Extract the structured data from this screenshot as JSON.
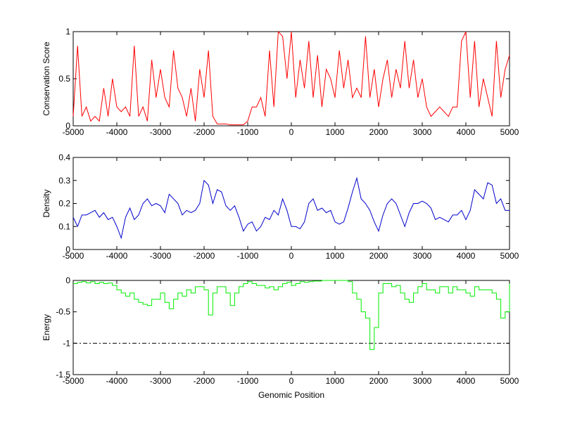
{
  "chart_data": [
    {
      "type": "line",
      "ylabel": "Conservation Score",
      "color": "#ff0000",
      "x": [
        -5000,
        -4900,
        -4800,
        -4700,
        -4600,
        -4500,
        -4400,
        -4300,
        -4200,
        -4100,
        -4000,
        -3900,
        -3800,
        -3700,
        -3600,
        -3500,
        -3400,
        -3300,
        -3200,
        -3100,
        -3000,
        -2900,
        -2800,
        -2700,
        -2600,
        -2500,
        -2400,
        -2300,
        -2200,
        -2100,
        -2000,
        -1900,
        -1800,
        -1700,
        -1600,
        -1500,
        -1400,
        -1300,
        -1200,
        -1100,
        -1000,
        -900,
        -800,
        -700,
        -600,
        -500,
        -400,
        -300,
        -200,
        -100,
        0,
        100,
        200,
        300,
        400,
        500,
        600,
        700,
        800,
        900,
        1000,
        1100,
        1200,
        1300,
        1400,
        1500,
        1600,
        1700,
        1800,
        1900,
        2000,
        2100,
        2200,
        2300,
        2400,
        2500,
        2600,
        2700,
        2800,
        2900,
        3000,
        3100,
        3200,
        3300,
        3400,
        3500,
        3600,
        3700,
        3800,
        3900,
        4000,
        4100,
        4200,
        4300,
        4400,
        4500,
        4600,
        4700,
        4800,
        4900,
        5000
      ],
      "values": [
        0.1,
        0.85,
        0.1,
        0.2,
        0.05,
        0.1,
        0.05,
        0.4,
        0.1,
        0.5,
        0.2,
        0.15,
        0.2,
        0.1,
        0.85,
        0.1,
        0.2,
        0.05,
        0.7,
        0.3,
        0.6,
        0.3,
        0.2,
        0.8,
        0.4,
        0.3,
        0.1,
        0.4,
        0.05,
        0.6,
        0.3,
        0.8,
        0.1,
        0.02,
        0.02,
        0.02,
        0.01,
        0.01,
        0.01,
        0.01,
        0.05,
        0.2,
        0.2,
        0.3,
        0.1,
        0.8,
        0.2,
        1,
        0.95,
        0.5,
        1,
        0.3,
        0.7,
        0.4,
        0.9,
        0.3,
        0.75,
        0.2,
        0.6,
        0.5,
        0.3,
        0.8,
        0.4,
        0.7,
        0.3,
        0.4,
        0.3,
        0.95,
        0.3,
        0.6,
        0.2,
        0.5,
        0.7,
        0.3,
        0.6,
        0.4,
        0.9,
        0.4,
        0.7,
        0.3,
        0.5,
        0.2,
        0.1,
        0.15,
        0.2,
        0.15,
        0.1,
        0.2,
        0.2,
        0.9,
        1,
        0.3,
        0.9,
        0.2,
        0.5,
        0.3,
        0.1,
        0.9,
        0.3,
        0.6,
        0.75
      ],
      "xlim": [
        -5000,
        5000
      ],
      "xticks": [
        -5000,
        -4000,
        -3000,
        -2000,
        -1000,
        0,
        1000,
        2000,
        3000,
        4000,
        5000
      ],
      "ylim": [
        0,
        1
      ],
      "yticks": [
        0,
        0.5,
        1
      ]
    },
    {
      "type": "line",
      "ylabel": "Density",
      "color": "#0000cc",
      "x": [
        -5000,
        -4900,
        -4800,
        -4700,
        -4600,
        -4500,
        -4400,
        -4300,
        -4200,
        -4100,
        -4000,
        -3900,
        -3800,
        -3700,
        -3600,
        -3500,
        -3400,
        -3300,
        -3200,
        -3100,
        -3000,
        -2900,
        -2800,
        -2700,
        -2600,
        -2500,
        -2400,
        -2300,
        -2200,
        -2100,
        -2000,
        -1900,
        -1800,
        -1700,
        -1600,
        -1500,
        -1400,
        -1300,
        -1200,
        -1100,
        -1000,
        -900,
        -800,
        -700,
        -600,
        -500,
        -400,
        -300,
        -200,
        -100,
        0,
        100,
        200,
        300,
        400,
        500,
        600,
        700,
        800,
        900,
        1000,
        1100,
        1200,
        1300,
        1400,
        1500,
        1600,
        1700,
        1800,
        1900,
        2000,
        2100,
        2200,
        2300,
        2400,
        2500,
        2600,
        2700,
        2800,
        2900,
        3000,
        3100,
        3200,
        3300,
        3400,
        3500,
        3600,
        3700,
        3800,
        3900,
        4000,
        4100,
        4200,
        4300,
        4400,
        4500,
        4600,
        4700,
        4800,
        4900,
        5000
      ],
      "values": [
        0.14,
        0.1,
        0.15,
        0.15,
        0.16,
        0.17,
        0.14,
        0.16,
        0.13,
        0.14,
        0.1,
        0.05,
        0.14,
        0.18,
        0.13,
        0.15,
        0.2,
        0.22,
        0.19,
        0.2,
        0.19,
        0.16,
        0.24,
        0.22,
        0.2,
        0.15,
        0.17,
        0.16,
        0.17,
        0.2,
        0.3,
        0.28,
        0.2,
        0.26,
        0.25,
        0.19,
        0.17,
        0.19,
        0.14,
        0.08,
        0.11,
        0.12,
        0.08,
        0.1,
        0.14,
        0.13,
        0.17,
        0.15,
        0.22,
        0.17,
        0.1,
        0.1,
        0.09,
        0.12,
        0.2,
        0.22,
        0.17,
        0.18,
        0.16,
        0.17,
        0.12,
        0.11,
        0.12,
        0.18,
        0.25,
        0.31,
        0.22,
        0.2,
        0.17,
        0.12,
        0.08,
        0.15,
        0.2,
        0.22,
        0.2,
        0.15,
        0.1,
        0.16,
        0.2,
        0.2,
        0.21,
        0.2,
        0.18,
        0.13,
        0.14,
        0.13,
        0.12,
        0.15,
        0.15,
        0.17,
        0.13,
        0.17,
        0.26,
        0.24,
        0.22,
        0.29,
        0.28,
        0.2,
        0.22,
        0.17,
        0.17
      ],
      "xlim": [
        -5000,
        5000
      ],
      "xticks": [
        -5000,
        -4000,
        -3000,
        -2000,
        -1000,
        0,
        1000,
        2000,
        3000,
        4000,
        5000
      ],
      "ylim": [
        0,
        0.4
      ],
      "yticks": [
        0,
        0.1,
        0.2,
        0.3,
        0.4
      ]
    },
    {
      "type": "step",
      "ylabel": "Energy",
      "xlabel": "Genomic Position",
      "color": "#00ee00",
      "x": [
        -5000,
        -4900,
        -4800,
        -4700,
        -4600,
        -4500,
        -4400,
        -4300,
        -4200,
        -4100,
        -4000,
        -3900,
        -3800,
        -3700,
        -3600,
        -3500,
        -3400,
        -3300,
        -3200,
        -3100,
        -3000,
        -2900,
        -2800,
        -2700,
        -2600,
        -2500,
        -2400,
        -2300,
        -2200,
        -2100,
        -2000,
        -1900,
        -1800,
        -1700,
        -1600,
        -1500,
        -1400,
        -1300,
        -1200,
        -1100,
        -1000,
        -900,
        -800,
        -700,
        -600,
        -500,
        -400,
        -300,
        -200,
        -100,
        0,
        100,
        200,
        300,
        400,
        500,
        600,
        700,
        800,
        900,
        1000,
        1100,
        1200,
        1300,
        1400,
        1500,
        1600,
        1700,
        1800,
        1900,
        2000,
        2100,
        2200,
        2300,
        2400,
        2500,
        2600,
        2700,
        2800,
        2900,
        3000,
        3100,
        3200,
        3300,
        3400,
        3500,
        3600,
        3700,
        3800,
        3900,
        4000,
        4100,
        4200,
        4300,
        4400,
        4500,
        4600,
        4700,
        4800,
        4900,
        5000
      ],
      "values": [
        -0.05,
        -0.03,
        -0.02,
        -0.04,
        -0.02,
        -0.05,
        -0.03,
        -0.05,
        -0.04,
        -0.08,
        -0.15,
        -0.2,
        -0.25,
        -0.2,
        -0.3,
        -0.35,
        -0.38,
        -0.4,
        -0.3,
        -0.3,
        -0.2,
        -0.35,
        -0.45,
        -0.3,
        -0.2,
        -0.25,
        -0.15,
        -0.2,
        -0.1,
        -0.1,
        -0.15,
        -0.55,
        -0.2,
        -0.1,
        -0.1,
        -0.2,
        -0.4,
        -0.2,
        -0.1,
        -0.05,
        -0.02,
        -0.05,
        -0.08,
        -0.08,
        -0.12,
        -0.1,
        -0.15,
        -0.1,
        -0.05,
        -0.03,
        -0.08,
        -0.05,
        -0.02,
        -0.03,
        -0.02,
        -0.01,
        -0.01,
        0,
        0,
        0,
        0,
        0,
        0,
        -0.02,
        -0.2,
        -0.3,
        -0.5,
        -0.6,
        -1.1,
        -0.75,
        -0.2,
        -0.05,
        -0.05,
        -0.1,
        -0.08,
        -0.2,
        -0.3,
        -0.35,
        -0.2,
        -0.1,
        -0.05,
        -0.15,
        -0.15,
        -0.2,
        -0.1,
        -0.1,
        -0.2,
        -0.1,
        -0.15,
        -0.15,
        -0.2,
        -0.25,
        -0.1,
        -0.15,
        -0.15,
        -0.15,
        -0.2,
        -0.3,
        -0.6,
        -0.5,
        -0.05
      ],
      "reference_line": -1,
      "xlim": [
        -5000,
        5000
      ],
      "xticks": [
        -5000,
        -4000,
        -3000,
        -2000,
        -1000,
        0,
        1000,
        2000,
        3000,
        4000,
        5000
      ],
      "ylim": [
        -1.5,
        0
      ],
      "yticks": [
        -1.5,
        -1,
        -0.5,
        0
      ]
    }
  ]
}
